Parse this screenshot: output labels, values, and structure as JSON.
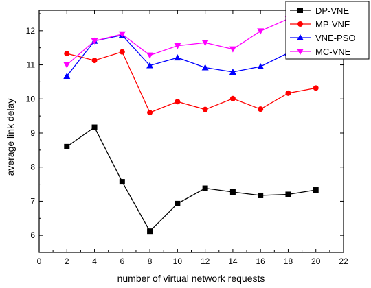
{
  "chart_data": {
    "type": "line",
    "title": "",
    "xlabel": "number of virtual network requests",
    "ylabel": "average link delay",
    "xlim": [
      0,
      22
    ],
    "ylim": [
      5.5,
      12.6
    ],
    "xticks": [
      0,
      2,
      4,
      6,
      8,
      10,
      12,
      14,
      16,
      18,
      20,
      22
    ],
    "yticks": [
      6,
      7,
      8,
      9,
      10,
      11,
      12
    ],
    "grid": false,
    "legend_position": "top-right",
    "x": [
      2,
      4,
      6,
      8,
      10,
      12,
      14,
      16,
      18,
      20
    ],
    "series": [
      {
        "name": "DP-VNE",
        "color": "#000000",
        "marker": "square",
        "values": [
          8.6,
          9.17,
          7.57,
          6.12,
          6.93,
          7.38,
          7.27,
          7.17,
          7.2,
          7.33
        ]
      },
      {
        "name": "MP-VNE",
        "color": "#ff0000",
        "marker": "circle",
        "values": [
          11.33,
          11.13,
          11.38,
          9.6,
          9.92,
          9.69,
          10.01,
          9.7,
          10.17,
          10.32
        ]
      },
      {
        "name": "VNE-PSO",
        "color": "#0000ff",
        "marker": "triangle-up",
        "values": [
          10.67,
          11.7,
          11.87,
          10.98,
          11.21,
          10.92,
          10.79,
          10.95,
          11.35,
          11.3
        ]
      },
      {
        "name": "MC-VNE",
        "color": "#ff00ff",
        "marker": "triangle-down",
        "values": [
          11.0,
          11.7,
          11.9,
          11.28,
          11.56,
          11.65,
          11.46,
          11.99,
          12.35,
          12.57
        ]
      }
    ]
  }
}
